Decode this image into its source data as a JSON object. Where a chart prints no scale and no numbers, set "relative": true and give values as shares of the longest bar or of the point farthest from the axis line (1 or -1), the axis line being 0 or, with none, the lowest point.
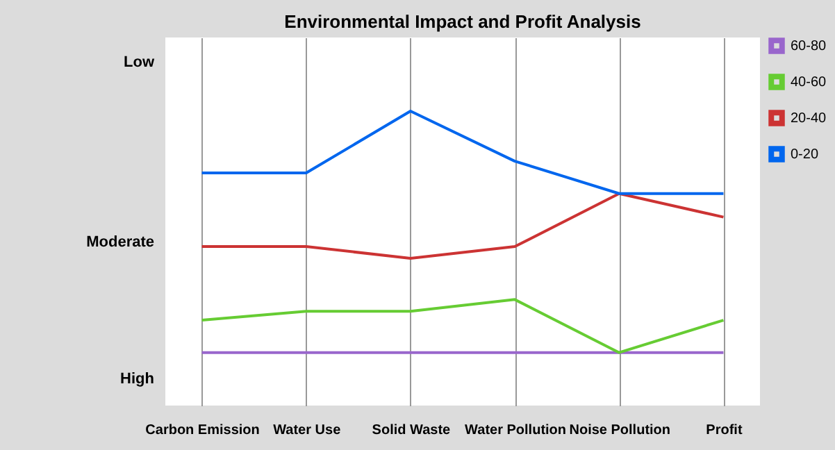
{
  "chart_data": {
    "type": "line",
    "title": "Environmental Impact and Profit Analysis",
    "categories": [
      "Carbon Emission",
      "Water Use",
      "Solid Waste",
      "Water Pollution",
      "Noise Pollution",
      "Profit"
    ],
    "relative": true,
    "series": [
      {
        "name": "60-80",
        "color": "#9966cc",
        "values": [
          0.18,
          0.18,
          0.18,
          0.18,
          0.18,
          0.18
        ]
      },
      {
        "name": "40-60",
        "color": "#66cc33",
        "values": [
          0.29,
          0.32,
          0.32,
          0.36,
          0.18,
          0.29
        ]
      },
      {
        "name": "20-40",
        "color": "#cc3333",
        "values": [
          0.54,
          0.54,
          0.5,
          0.54,
          0.72,
          0.64
        ]
      },
      {
        "name": "0-20",
        "color": "#0066ee",
        "values": [
          0.79,
          0.79,
          1,
          0.83,
          0.72,
          0.72
        ]
      }
    ],
    "annotations": [
      "Low",
      "Moderate",
      "High"
    ],
    "grid": "x",
    "legend": "right",
    "marker": "none",
    "line_style": "solid"
  }
}
